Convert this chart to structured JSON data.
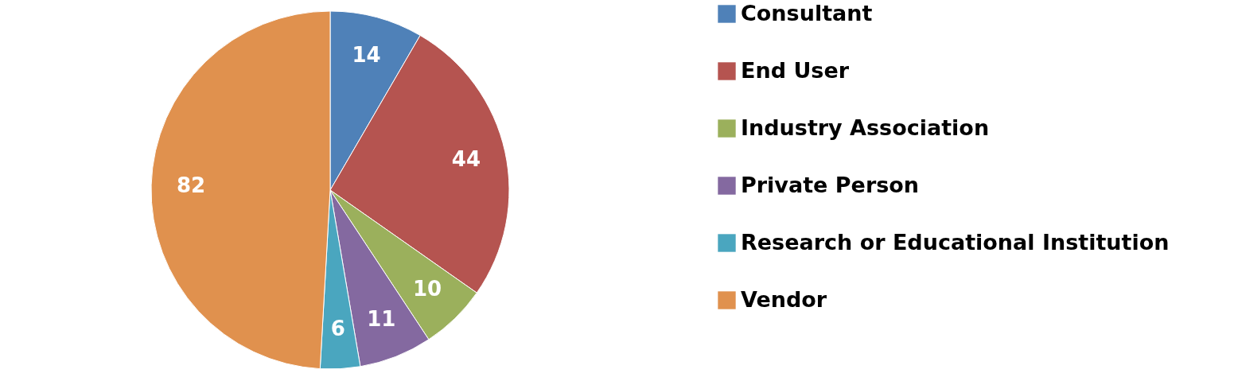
{
  "chart_data": {
    "type": "pie",
    "categories": [
      "Consultant",
      "End User",
      "Industry Association",
      "Private Person",
      "Research or Educational Institution",
      "Vendor"
    ],
    "values": [
      14,
      44,
      10,
      11,
      6,
      82
    ],
    "colors": [
      "#4f81b8",
      "#b55450",
      "#9bb05c",
      "#8469a0",
      "#4aa6bf",
      "#e0914e"
    ],
    "data_labels": true,
    "legend": "right"
  }
}
